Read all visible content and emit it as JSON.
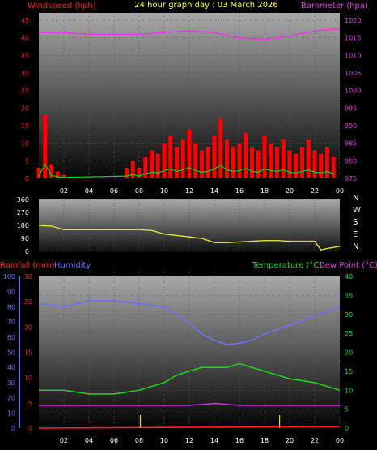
{
  "title": "24 hour graph day : 03 March 2026",
  "x_tick_labels": [
    "02",
    "04",
    "06",
    "08",
    "10",
    "12",
    "14",
    "16",
    "18",
    "20",
    "22",
    "00"
  ],
  "colors": {
    "background": "#000000",
    "windspeed": "#ff0000",
    "wind_gust_base": "#00dd00",
    "barometer": "#e040e0",
    "direction": "#e0e040",
    "humidity": "#7070f0",
    "temperature": "#22cc22",
    "dewpoint": "#e020e0",
    "rainfall": "#ff2020",
    "rain_bar": "#e0e000",
    "axis_text_left": "#ff2020",
    "axis_text_right": "#e040e0",
    "axis_text_green": "#22dd22",
    "axis_text_blue": "#6a6aff",
    "white": "#ffffff"
  },
  "chart_data": [
    {
      "type": "line",
      "panel": "wind-barometer",
      "left_axis": {
        "label": "Windspeed (kph)",
        "ticks": [
          "0",
          "5",
          "10",
          "15",
          "20",
          "25",
          "30",
          "35",
          "40",
          "45"
        ],
        "ylim": [
          0,
          45
        ]
      },
      "right_axis": {
        "label": "Barometer (hpa)",
        "ticks": [
          "975",
          "980",
          "985",
          "990",
          "995",
          "1000",
          "1005",
          "1010",
          "1015",
          "1020"
        ],
        "ylim": [
          975,
          1020
        ]
      },
      "series": [
        {
          "name": "Windspeed (kph)",
          "hours": [
            0,
            0.5,
            1,
            1.5,
            2,
            7,
            7.5,
            8,
            8.5,
            9,
            9.5,
            10,
            10.5,
            11,
            11.5,
            12,
            12.5,
            13,
            13.5,
            14,
            14.5,
            15,
            15.5,
            16,
            16.5,
            17,
            17.5,
            18,
            18.5,
            19,
            19.5,
            20,
            20.5,
            21,
            21.5,
            22,
            22.5,
            23,
            23.5
          ],
          "values": [
            3,
            18,
            4,
            2,
            1,
            3,
            5,
            3,
            6,
            8,
            7,
            10,
            12,
            9,
            11,
            14,
            10,
            8,
            9,
            12,
            17,
            11,
            9,
            10,
            13,
            9,
            8,
            12,
            10,
            9,
            11,
            8,
            7,
            9,
            11,
            8,
            7,
            9,
            6
          ]
        },
        {
          "name": "Barometer (hpa)",
          "hours": [
            0,
            2,
            4,
            6,
            8,
            10,
            12,
            14,
            16,
            18,
            20,
            22,
            24
          ],
          "values": [
            1016.5,
            1016.5,
            1016,
            1016,
            1016,
            1016.5,
            1017,
            1016.5,
            1015,
            1014.5,
            1015.5,
            1017,
            1017.5
          ]
        }
      ]
    },
    {
      "type": "line",
      "panel": "wind-direction",
      "left_axis": {
        "ticks": [
          "0",
          "90",
          "180",
          "270",
          "360"
        ],
        "ylim": [
          0,
          360
        ]
      },
      "right_axis_labels": [
        "N",
        "W",
        "S",
        "E",
        "N"
      ],
      "series": [
        {
          "name": "Wind Direction",
          "hours": [
            0,
            1,
            2,
            4,
            6,
            8,
            9,
            10,
            11,
            12,
            13,
            14,
            15,
            16,
            17,
            18,
            19,
            20,
            21,
            22,
            22.5,
            23,
            24
          ],
          "values": [
            180,
            175,
            150,
            150,
            150,
            150,
            145,
            120,
            110,
            100,
            90,
            60,
            60,
            65,
            70,
            75,
            75,
            70,
            70,
            70,
            10,
            20,
            35
          ]
        }
      ]
    },
    {
      "type": "line",
      "panel": "temperature-humidity",
      "left_axis_outer": {
        "label": "Rainfall (mm)",
        "ticks": [
          "0",
          "5",
          "10",
          "15",
          "20",
          "25",
          "30"
        ],
        "ylim": [
          0,
          30
        ]
      },
      "left_axis_inner": {
        "label": "Humidity",
        "ticks": [
          "0",
          "10",
          "20",
          "30",
          "40",
          "50",
          "60",
          "70",
          "80",
          "90",
          "100"
        ],
        "ylim": [
          0,
          100
        ]
      },
      "right_axis": {
        "label": "Temperature (°C)",
        "label2": "Dew Point (°C)",
        "ticks": [
          "0",
          "5",
          "10",
          "15",
          "20",
          "25",
          "30",
          "35",
          "40"
        ],
        "ylim": [
          0,
          40
        ]
      },
      "series": [
        {
          "name": "Humidity",
          "hours": [
            0,
            2,
            4,
            6,
            8,
            10,
            12,
            13,
            14,
            15,
            16,
            17,
            18,
            20,
            22,
            24
          ],
          "values": [
            82,
            80,
            84,
            84,
            82,
            80,
            70,
            62,
            58,
            55,
            56,
            58,
            62,
            68,
            74,
            80
          ]
        },
        {
          "name": "Temperature (°C)",
          "hours": [
            0,
            2,
            4,
            6,
            8,
            10,
            11,
            12,
            13,
            14,
            15,
            16,
            17,
            18,
            19,
            20,
            22,
            24
          ],
          "values": [
            10,
            10,
            9,
            9,
            10,
            12,
            14,
            15,
            16,
            16,
            16,
            17,
            16,
            15,
            14,
            13,
            12,
            10
          ]
        },
        {
          "name": "Dew Point (°C)",
          "hours": [
            0,
            2,
            4,
            6,
            8,
            10,
            12,
            14,
            16,
            18,
            20,
            22,
            24
          ],
          "values": [
            6,
            6,
            6,
            6,
            6,
            6,
            6,
            6.5,
            6,
            6,
            6,
            6,
            6
          ]
        },
        {
          "name": "Rainfall (mm)",
          "hours": [
            0,
            24
          ],
          "values": [
            0,
            0.3
          ]
        }
      ]
    }
  ]
}
